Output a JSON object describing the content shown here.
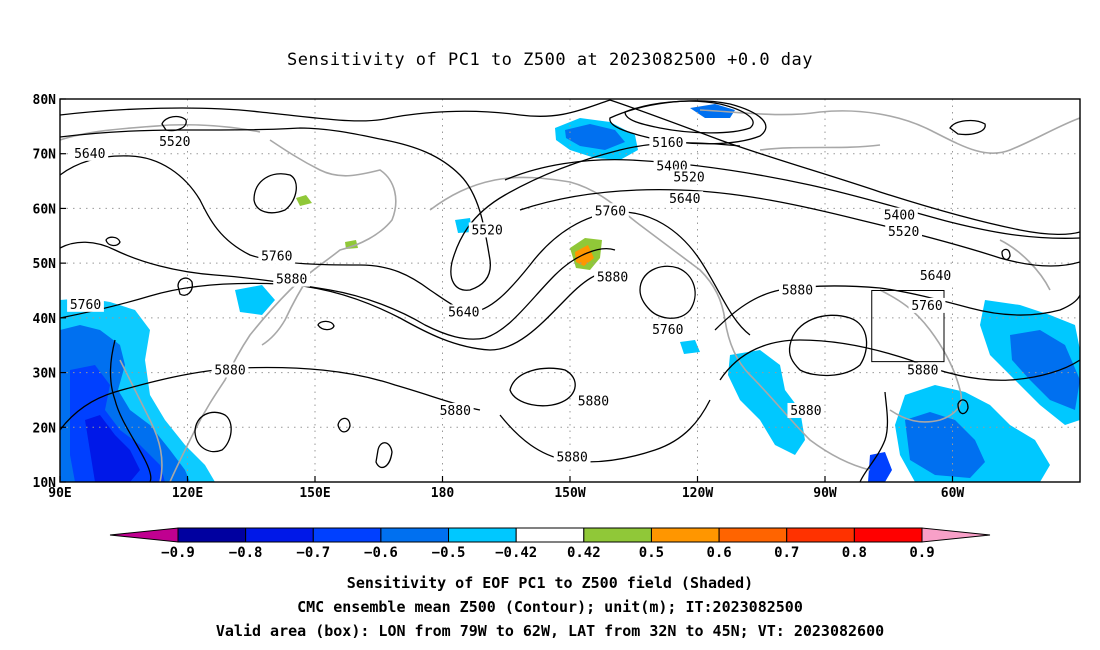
{
  "title": "Sensitivity of PC1 to Z500 at 2023082500 +0.0 day",
  "map": {
    "lon_ticks": [
      "90E",
      "120E",
      "150E",
      "180",
      "150W",
      "120W",
      "90W",
      "60W"
    ],
    "lat_ticks": [
      "80N",
      "70N",
      "60N",
      "50N",
      "40N",
      "30N",
      "20N",
      "10N"
    ],
    "gridlines": true,
    "valid_box": {
      "lon_west": "79W",
      "lon_east": "62W",
      "lat_south": "32N",
      "lat_north": "45N"
    }
  },
  "contour_labels": [
    {
      "text": "5520",
      "lon": 117,
      "lat": 72
    },
    {
      "text": "5640",
      "lon": 97,
      "lat": 69.8
    },
    {
      "text": "5160",
      "lon": 233,
      "lat": 71.8
    },
    {
      "text": "5400",
      "lon": 234,
      "lat": 67.5
    },
    {
      "text": "5520",
      "lon": 238,
      "lat": 65.5
    },
    {
      "text": "5640",
      "lon": 237,
      "lat": 61.5
    },
    {
      "text": "5760",
      "lon": 219.5,
      "lat": 59.3
    },
    {
      "text": "5520",
      "lon": 190.5,
      "lat": 55.8
    },
    {
      "text": "5400",
      "lon": 287.5,
      "lat": 58.5
    },
    {
      "text": "5520",
      "lon": 288.5,
      "lat": 55.5
    },
    {
      "text": "5640",
      "lon": 296,
      "lat": 47.5
    },
    {
      "text": "5760",
      "lon": 141,
      "lat": 51
    },
    {
      "text": "5880",
      "lon": 144.5,
      "lat": 46.8
    },
    {
      "text": "5760",
      "lon": 96,
      "lat": 42.2
    },
    {
      "text": "5640",
      "lon": 185,
      "lat": 40.8
    },
    {
      "text": "5880",
      "lon": 220,
      "lat": 47.2
    },
    {
      "text": "5760",
      "lon": 233,
      "lat": 37.6
    },
    {
      "text": "5880",
      "lon": 263.5,
      "lat": 44.8
    },
    {
      "text": "5760",
      "lon": 294,
      "lat": 42
    },
    {
      "text": "5880",
      "lon": 130,
      "lat": 30.2
    },
    {
      "text": "5880",
      "lon": 293,
      "lat": 30.2
    },
    {
      "text": "5880",
      "lon": 183,
      "lat": 22.8
    },
    {
      "text": "5880",
      "lon": 215.5,
      "lat": 24.5
    },
    {
      "text": "5880",
      "lon": 265.5,
      "lat": 22.8
    },
    {
      "text": "5880",
      "lon": 210.5,
      "lat": 14.3
    }
  ],
  "colorbar": {
    "ticks": [
      "−0.9",
      "−0.8",
      "−0.7",
      "−0.6",
      "−0.5",
      "−0.42",
      "0.42",
      "0.5",
      "0.6",
      "0.7",
      "0.8",
      "0.9"
    ],
    "colors": [
      "#0000a0",
      "#0018e8",
      "#0040ff",
      "#0070f0",
      "#00c8ff",
      "#ffffff",
      "#90c838",
      "#ff9600",
      "#ff6400",
      "#ff3200",
      "#ff0000"
    ],
    "low_extend_color": "#c00090",
    "high_extend_color": "#f8a0c8"
  },
  "captions": [
    "Sensitivity of EOF PC1 to Z500 field (Shaded)",
    "CMC ensemble mean Z500 (Contour); unit(m); IT:2023082500",
    "Valid area (box): LON from 79W to 62W, LAT from 32N to 45N; VT: 2023082600"
  ]
}
